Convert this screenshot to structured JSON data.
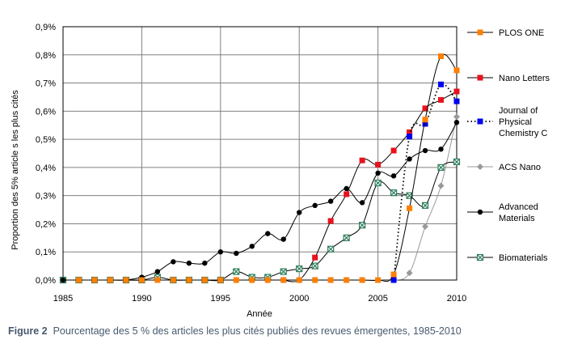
{
  "caption": {
    "label": "Figure 2",
    "text": "Pourcentage des 5 % des articles les plus cités publiés des revues émergentes, 1985-2010"
  },
  "chart_data": {
    "type": "line",
    "xlabel": "Année",
    "ylabel": "Proportion des 5% article s les plus cités",
    "xlim": [
      1985,
      2010
    ],
    "ylim": [
      0,
      0.009
    ],
    "x_ticks": [
      "1985",
      "1990",
      "1995",
      "2000",
      "2005",
      "2010"
    ],
    "x_tick_values": [
      1985,
      1990,
      1995,
      2000,
      2005,
      2010
    ],
    "y_ticks": [
      "0,0%",
      "0,1%",
      "0,2%",
      "0,3%",
      "0,4%",
      "0,5%",
      "0,6%",
      "0,7%",
      "0,8%",
      "0,9%"
    ],
    "y_tick_values": [
      0,
      0.001,
      0.002,
      0.003,
      0.004,
      0.005,
      0.006,
      0.007,
      0.008,
      0.009
    ],
    "grid": true,
    "legend_position": "right",
    "series": [
      {
        "name": "PLOS ONE",
        "color": "#ff7f00",
        "marker": "square",
        "line": "solid",
        "x": [
          1986,
          1987,
          1988,
          1989,
          1990,
          1991,
          1992,
          1993,
          1994,
          1995,
          1996,
          1997,
          1998,
          1999,
          2000,
          2001,
          2002,
          2003,
          2004,
          2005,
          2006,
          2007,
          2008,
          2009,
          2010
        ],
        "values": [
          0,
          0,
          0,
          0,
          0,
          0,
          0,
          0,
          0,
          0,
          0,
          0,
          0,
          0,
          0,
          0,
          0,
          0,
          0,
          0,
          0.0002,
          0.00255,
          0.0057,
          0.00795,
          0.00745
        ]
      },
      {
        "name": "Nano Letters",
        "color": "#e8121e",
        "marker": "square",
        "line": "solid",
        "x": [
          1999,
          2000,
          2001,
          2002,
          2003,
          2004,
          2005,
          2006,
          2007,
          2008,
          2009,
          2010
        ],
        "values": [
          0,
          0,
          0.0008,
          0.0021,
          0.00305,
          0.00425,
          0.0041,
          0.0046,
          0.00525,
          0.0061,
          0.0064,
          0.0067
        ]
      },
      {
        "name": "Journal of Physical Chemistry C",
        "color": "#0000ee",
        "marker": "square",
        "line": "dotted",
        "x": [
          2006,
          2007,
          2008,
          2009,
          2010
        ],
        "values": [
          0,
          0.0051,
          0.00555,
          0.00695,
          0.00635
        ]
      },
      {
        "name": "ACS Nano",
        "color": "#999999",
        "marker": "diamond",
        "line": "solid",
        "x": [
          1996,
          1997,
          1998,
          1999,
          2000,
          2001,
          2002,
          2003,
          2004,
          2005,
          2006,
          2007,
          2008,
          2009,
          2010
        ],
        "values": [
          0,
          0,
          0,
          0,
          0,
          0,
          0,
          0,
          0,
          0,
          0,
          0.00025,
          0.0019,
          0.00335,
          0.0058
        ]
      },
      {
        "name": "Advanced Materials",
        "color": "#000000",
        "marker": "circle",
        "line": "solid",
        "x": [
          1985,
          1986,
          1987,
          1988,
          1989,
          1990,
          1991,
          1992,
          1993,
          1994,
          1995,
          1996,
          1997,
          1998,
          1999,
          2000,
          2001,
          2002,
          2003,
          2004,
          2005,
          2006,
          2007,
          2008,
          2009,
          2010
        ],
        "values": [
          0,
          0,
          0,
          0,
          0,
          0.0001,
          0.0003,
          0.00065,
          0.0006,
          0.0006,
          0.001,
          0.00095,
          0.0012,
          0.00165,
          0.00145,
          0.0024,
          0.00265,
          0.0028,
          0.00325,
          0.00275,
          0.0038,
          0.0037,
          0.0043,
          0.0046,
          0.00465,
          0.0056
        ]
      },
      {
        "name": "Biomaterials",
        "color": "#2e7d5b",
        "marker": "x-square",
        "line": "solid",
        "x": [
          1985,
          1986,
          1987,
          1988,
          1989,
          1990,
          1991,
          1992,
          1993,
          1994,
          1995,
          1996,
          1997,
          1998,
          1999,
          2000,
          2001,
          2002,
          2003,
          2004,
          2005,
          2006,
          2007,
          2008,
          2009,
          2010
        ],
        "values": [
          0,
          0,
          0,
          0,
          0,
          0,
          0.0001,
          0,
          0,
          0,
          0,
          0.0003,
          0.0001,
          0.0001,
          0.0003,
          0.0004,
          0.0005,
          0.0011,
          0.0015,
          0.00195,
          0.00345,
          0.0031,
          0.003,
          0.00265,
          0.004,
          0.0042
        ]
      }
    ]
  }
}
